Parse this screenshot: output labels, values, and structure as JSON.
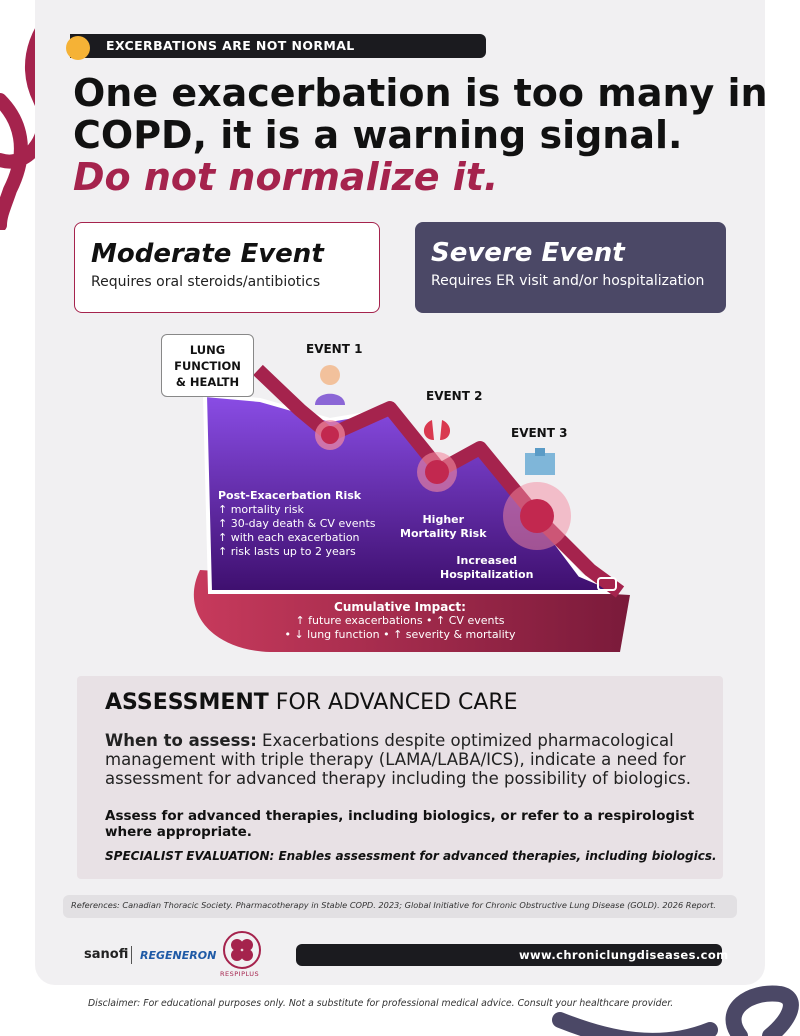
{
  "header": {
    "tag": "EXCERBATIONS ARE NOT NORMAL"
  },
  "headline": {
    "line1": "One exacerbation is too many in",
    "line2": "COPD, it is a warning signal.",
    "emphasis": "Do not normalize it."
  },
  "moderate": {
    "title": "Moderate Event",
    "desc": "Requires oral steroids/antibiotics"
  },
  "severe": {
    "title": "Severe Event",
    "desc": "Requires ER visit and/or hospitalization"
  },
  "diagram": {
    "y_label_1": "LUNG",
    "y_label_2": "FUNCTION",
    "y_label_3": "& HEALTH",
    "event1": "EVENT 1",
    "event2": "EVENT 2",
    "event3": "EVENT 3",
    "risk_title": "Post-Exacerbation Risk",
    "risk_1": "↑ mortality risk",
    "risk_2": "↑ 30-day death & CV events",
    "risk_3": "↑ with each exacerbation",
    "risk_4": "↑ risk lasts up to 2 years",
    "higher_1": "Higher",
    "higher_2": "Mortality Risk",
    "incr_1": "Increased",
    "incr_2": "Hospitalization",
    "cumul_title": "Cumulative Impact:",
    "cumul_1": "↑ future exacerbations • ↑ CV events",
    "cumul_2": "• ↓ lung function • ↑ severity & mortality",
    "colors": {
      "purple": "#5b21a6",
      "crimson": "#a5234d",
      "red": "#d9394f"
    }
  },
  "assessment": {
    "title_bold": "ASSESSMENT",
    "title_rest": " FOR ADVANCED CARE",
    "when_label": "When to assess:",
    "when_text": " Exacerbations despite optimized pharmacological management with triple therapy (LAMA/LABA/ICS), indicate a need for assessment for advanced therapy including the possibility of biologics.",
    "bold_text": "Assess for advanced therapies, including biologics, or refer to a respirologist where appropriate.",
    "italic_text": "SPECIALIST EVALUATION: Enables assessment for advanced therapies, including biologics."
  },
  "references": "References: Canadian Thoracic Society. Pharmacotherapy in Stable COPD. 2023; Global Initiative for Chronic Obstructive Lung Disease (GOLD). 2026 Report.",
  "footer": {
    "sanofi": "sanofi",
    "regeneron": "REGENERON",
    "respiplus": "RESPIPLUS",
    "url": "www.chroniclungdiseases.com"
  },
  "disclaimer": "Disclaimer: For educational purposes only. Not a substitute for professional medical advice. Consult your healthcare provider."
}
